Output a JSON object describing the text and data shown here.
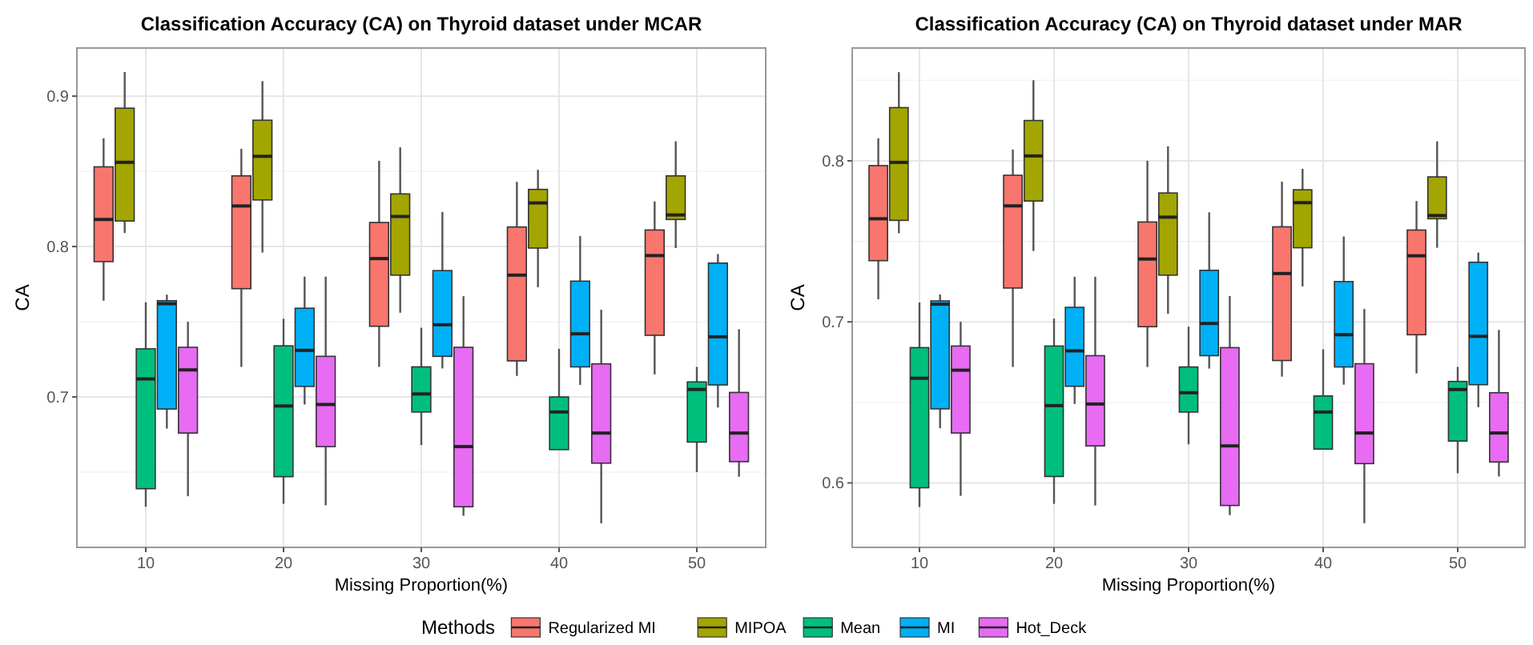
{
  "chart_data": [
    {
      "type": "box",
      "title": "Classification Accuracy (CA) on Thyroid dataset under MCAR",
      "xlabel": "Missing Proportion(%)",
      "ylabel": "CA",
      "legend_title": "Methods",
      "legend": "bottom",
      "grid": true,
      "categories": [
        "10",
        "20",
        "30",
        "40",
        "50"
      ],
      "ylim": [
        0.6,
        0.932
      ],
      "yticks": [
        0.7,
        0.8,
        0.9
      ],
      "series": [
        {
          "name": "Regularized MI",
          "color": "#f8766d",
          "boxes": [
            {
              "low": 0.764,
              "q1": 0.79,
              "median": 0.818,
              "q3": 0.853,
              "high": 0.872
            },
            {
              "low": 0.72,
              "q1": 0.772,
              "median": 0.827,
              "q3": 0.847,
              "high": 0.865
            },
            {
              "low": 0.72,
              "q1": 0.747,
              "median": 0.792,
              "q3": 0.816,
              "high": 0.857
            },
            {
              "low": 0.714,
              "q1": 0.724,
              "median": 0.781,
              "q3": 0.813,
              "high": 0.843
            },
            {
              "low": 0.715,
              "q1": 0.741,
              "median": 0.794,
              "q3": 0.811,
              "high": 0.83
            }
          ]
        },
        {
          "name": "MIPOA",
          "color": "#a3a500",
          "boxes": [
            {
              "low": 0.809,
              "q1": 0.817,
              "median": 0.856,
              "q3": 0.892,
              "high": 0.916
            },
            {
              "low": 0.796,
              "q1": 0.831,
              "median": 0.86,
              "q3": 0.884,
              "high": 0.91
            },
            {
              "low": 0.756,
              "q1": 0.781,
              "median": 0.82,
              "q3": 0.835,
              "high": 0.866
            },
            {
              "low": 0.773,
              "q1": 0.799,
              "median": 0.829,
              "q3": 0.838,
              "high": 0.851
            },
            {
              "low": 0.799,
              "q1": 0.818,
              "median": 0.821,
              "q3": 0.847,
              "high": 0.87
            }
          ]
        },
        {
          "name": "Mean",
          "color": "#00bf7d",
          "boxes": [
            {
              "low": 0.627,
              "q1": 0.639,
              "median": 0.712,
              "q3": 0.732,
              "high": 0.763
            },
            {
              "low": 0.629,
              "q1": 0.647,
              "median": 0.694,
              "q3": 0.734,
              "high": 0.752
            },
            {
              "low": 0.668,
              "q1": 0.69,
              "median": 0.702,
              "q3": 0.72,
              "high": 0.746
            },
            {
              "low": 0.665,
              "q1": 0.665,
              "median": 0.69,
              "q3": 0.7,
              "high": 0.732
            },
            {
              "low": 0.65,
              "q1": 0.67,
              "median": 0.705,
              "q3": 0.71,
              "high": 0.72
            }
          ]
        },
        {
          "name": "MI",
          "color": "#00b0f6",
          "boxes": [
            {
              "low": 0.679,
              "q1": 0.692,
              "median": 0.762,
              "q3": 0.764,
              "high": 0.768
            },
            {
              "low": 0.695,
              "q1": 0.707,
              "median": 0.731,
              "q3": 0.759,
              "high": 0.78
            },
            {
              "low": 0.719,
              "q1": 0.727,
              "median": 0.748,
              "q3": 0.784,
              "high": 0.823
            },
            {
              "low": 0.708,
              "q1": 0.72,
              "median": 0.742,
              "q3": 0.777,
              "high": 0.807
            },
            {
              "low": 0.693,
              "q1": 0.708,
              "median": 0.74,
              "q3": 0.789,
              "high": 0.795
            }
          ]
        },
        {
          "name": "Hot_Deck",
          "color": "#e76bf3",
          "boxes": [
            {
              "low": 0.634,
              "q1": 0.676,
              "median": 0.718,
              "q3": 0.733,
              "high": 0.75
            },
            {
              "low": 0.628,
              "q1": 0.667,
              "median": 0.695,
              "q3": 0.727,
              "high": 0.78
            },
            {
              "low": 0.621,
              "q1": 0.627,
              "median": 0.667,
              "q3": 0.733,
              "high": 0.767
            },
            {
              "low": 0.616,
              "q1": 0.656,
              "median": 0.676,
              "q3": 0.722,
              "high": 0.758
            },
            {
              "low": 0.647,
              "q1": 0.657,
              "median": 0.676,
              "q3": 0.703,
              "high": 0.745
            }
          ]
        }
      ]
    },
    {
      "type": "box",
      "title": "Classification Accuracy (CA) on Thyroid dataset under MAR",
      "xlabel": "Missing Proportion(%)",
      "ylabel": "CA",
      "grid": true,
      "categories": [
        "10",
        "20",
        "30",
        "40",
        "50"
      ],
      "ylim": [
        0.56,
        0.87
      ],
      "yticks": [
        0.6,
        0.7,
        0.8
      ],
      "series": [
        {
          "color": "#f8766d",
          "boxes": [
            {
              "low": 0.714,
              "q1": 0.738,
              "median": 0.764,
              "q3": 0.797,
              "high": 0.814
            },
            {
              "low": 0.672,
              "q1": 0.721,
              "median": 0.772,
              "q3": 0.791,
              "high": 0.807
            },
            {
              "low": 0.672,
              "q1": 0.697,
              "median": 0.739,
              "q3": 0.762,
              "high": 0.8
            },
            {
              "low": 0.666,
              "q1": 0.676,
              "median": 0.73,
              "q3": 0.759,
              "high": 0.787
            },
            {
              "low": 0.668,
              "q1": 0.692,
              "median": 0.741,
              "q3": 0.757,
              "high": 0.775
            }
          ]
        },
        {
          "color": "#a3a500",
          "boxes": [
            {
              "low": 0.755,
              "q1": 0.763,
              "median": 0.799,
              "q3": 0.833,
              "high": 0.855
            },
            {
              "low": 0.744,
              "q1": 0.775,
              "median": 0.803,
              "q3": 0.825,
              "high": 0.85
            },
            {
              "low": 0.705,
              "q1": 0.729,
              "median": 0.765,
              "q3": 0.78,
              "high": 0.809
            },
            {
              "low": 0.722,
              "q1": 0.746,
              "median": 0.774,
              "q3": 0.782,
              "high": 0.795
            },
            {
              "low": 0.746,
              "q1": 0.764,
              "median": 0.766,
              "q3": 0.79,
              "high": 0.812
            }
          ]
        },
        {
          "color": "#00bf7d",
          "boxes": [
            {
              "low": 0.585,
              "q1": 0.597,
              "median": 0.665,
              "q3": 0.684,
              "high": 0.712
            },
            {
              "low": 0.587,
              "q1": 0.604,
              "median": 0.648,
              "q3": 0.685,
              "high": 0.702
            },
            {
              "low": 0.624,
              "q1": 0.644,
              "median": 0.656,
              "q3": 0.672,
              "high": 0.697
            },
            {
              "low": 0.621,
              "q1": 0.621,
              "median": 0.644,
              "q3": 0.654,
              "high": 0.683
            },
            {
              "low": 0.606,
              "q1": 0.626,
              "median": 0.658,
              "q3": 0.663,
              "high": 0.672
            }
          ]
        },
        {
          "color": "#00b0f6",
          "boxes": [
            {
              "low": 0.634,
              "q1": 0.646,
              "median": 0.711,
              "q3": 0.713,
              "high": 0.717
            },
            {
              "low": 0.649,
              "q1": 0.66,
              "median": 0.682,
              "q3": 0.709,
              "high": 0.728
            },
            {
              "low": 0.671,
              "q1": 0.679,
              "median": 0.699,
              "q3": 0.732,
              "high": 0.768
            },
            {
              "low": 0.661,
              "q1": 0.672,
              "median": 0.692,
              "q3": 0.725,
              "high": 0.753
            },
            {
              "low": 0.647,
              "q1": 0.661,
              "median": 0.691,
              "q3": 0.737,
              "high": 0.743
            }
          ]
        },
        {
          "color": "#e76bf3",
          "boxes": [
            {
              "low": 0.592,
              "q1": 0.631,
              "median": 0.67,
              "q3": 0.685,
              "high": 0.7
            },
            {
              "low": 0.586,
              "q1": 0.623,
              "median": 0.649,
              "q3": 0.679,
              "high": 0.728
            },
            {
              "low": 0.58,
              "q1": 0.586,
              "median": 0.623,
              "q3": 0.684,
              "high": 0.716
            },
            {
              "low": 0.575,
              "q1": 0.612,
              "median": 0.631,
              "q3": 0.674,
              "high": 0.708
            },
            {
              "low": 0.604,
              "q1": 0.613,
              "median": 0.631,
              "q3": 0.656,
              "high": 0.695
            }
          ]
        }
      ]
    }
  ]
}
